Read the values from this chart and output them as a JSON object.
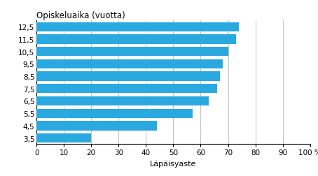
{
  "categories": [
    "3,5",
    "4,5",
    "5,5",
    "6,5",
    "7,5",
    "8,5",
    "9,5",
    "10,5",
    "11,5",
    "12,5"
  ],
  "values": [
    20,
    44,
    57,
    63,
    66,
    67,
    68,
    70,
    73,
    74
  ],
  "bar_color": "#29a9e0",
  "title": "Opiskeluaika (vuotta)",
  "xlabel": "Läpäisyaste",
  "xlim": [
    0,
    100
  ],
  "xticks": [
    0,
    10,
    20,
    30,
    40,
    50,
    60,
    70,
    80,
    90,
    100
  ],
  "xtick_labels": [
    "0",
    "10",
    "20",
    "30",
    "40",
    "50",
    "60",
    "70",
    "80",
    "90",
    "100 %"
  ],
  "grid_color": "#aaaaaa",
  "background_color": "#ffffff",
  "bar_height": 0.75,
  "title_fontsize": 8.5,
  "label_fontsize": 8,
  "tick_fontsize": 7.5
}
